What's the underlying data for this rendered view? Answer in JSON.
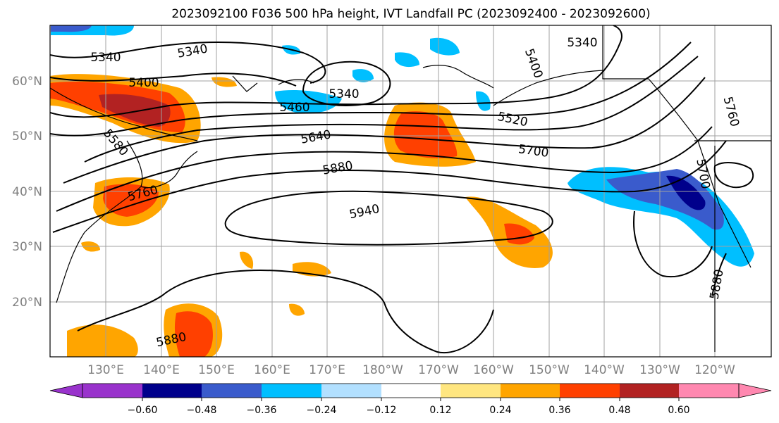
{
  "title": "2023092100 F036 500 hPa height, IVT Landfall PC (2023092400 - 2023092600)",
  "map": {
    "lon_labels": [
      "130°E",
      "140°E",
      "150°E",
      "160°E",
      "170°E",
      "180°W",
      "170°W",
      "160°W",
      "150°W",
      "140°W",
      "130°W",
      "120°W"
    ],
    "lat_labels": [
      "60°N",
      "50°N",
      "40°N",
      "30°N",
      "20°N"
    ],
    "contour_labels": [
      "5340",
      "5340",
      "5340",
      "5340",
      "5400",
      "5400",
      "5460",
      "5520",
      "5580",
      "5640",
      "5700",
      "5700",
      "5760",
      "5760",
      "5880",
      "5880",
      "5880",
      "5940"
    ]
  },
  "colorbar": {
    "ticks": [
      "−0.60",
      "−0.48",
      "−0.36",
      "−0.24",
      "−0.12",
      "0.12",
      "0.24",
      "0.36",
      "0.48",
      "0.60"
    ],
    "colors": [
      "#9933cc",
      "#00008b",
      "#3a5bcc",
      "#00bfff",
      "#b2e0ff",
      "#ffffff",
      "#ffe680",
      "#ffa500",
      "#ff4000",
      "#b22222",
      "#ff88b0"
    ]
  }
}
